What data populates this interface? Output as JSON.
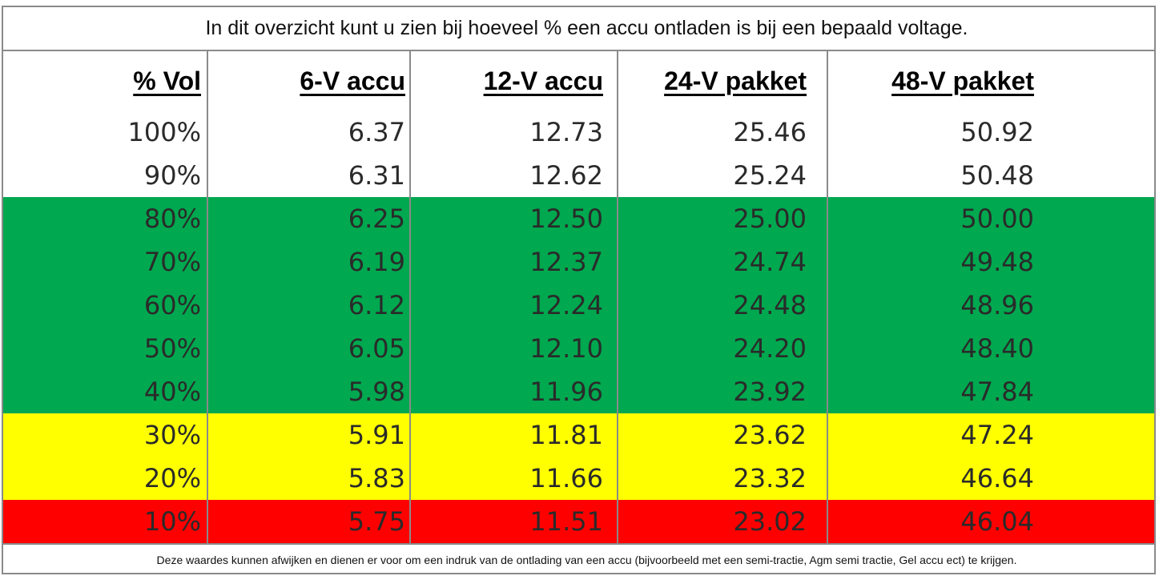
{
  "title": "In dit overzicht kunt u zien bij hoeveel % een accu ontladen is bij een bepaald voltage.",
  "headers": [
    "% Vol",
    "6-V accu",
    "12-V accu",
    "24-V pakket",
    "48-V pakket"
  ],
  "rows": [
    {
      "cells": [
        "100%",
        "6.37",
        "12.73",
        "25.46",
        "50.92"
      ],
      "color": "#ffffff"
    },
    {
      "cells": [
        "90%",
        "6.31",
        "12.62",
        "25.24",
        "50.48"
      ],
      "color": "#ffffff"
    },
    {
      "cells": [
        "80%",
        "6.25",
        "12.50",
        "25.00",
        "50.00"
      ],
      "color": "#00a84f"
    },
    {
      "cells": [
        "70%",
        "6.19",
        "12.37",
        "24.74",
        "49.48"
      ],
      "color": "#00a84f"
    },
    {
      "cells": [
        "60%",
        "6.12",
        "12.24",
        "24.48",
        "48.96"
      ],
      "color": "#00a84f"
    },
    {
      "cells": [
        "50%",
        "6.05",
        "12.10",
        "24.20",
        "48.40"
      ],
      "color": "#00a84f"
    },
    {
      "cells": [
        "40%",
        "5.98",
        "11.96",
        "23.92",
        "47.84"
      ],
      "color": "#00a84f"
    },
    {
      "cells": [
        "30%",
        "5.91",
        "11.81",
        "23.62",
        "47.24"
      ],
      "color": "#ffff00"
    },
    {
      "cells": [
        "20%",
        "5.83",
        "11.66",
        "23.32",
        "46.64"
      ],
      "color": "#ffff00"
    },
    {
      "cells": [
        "10%",
        "5.75",
        "11.51",
        "23.02",
        "46.04"
      ],
      "color": "#ff0000"
    }
  ],
  "footer": "Deze waardes kunnen afwijken en dienen er voor om een indruk van de ontlading van een accu (bijvoorbeeld met een semi-tractie, Agm semi tractie, Gel accu ect) te krijgen."
}
